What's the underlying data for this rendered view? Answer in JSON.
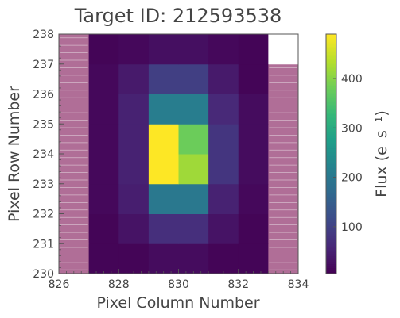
{
  "chart_data": {
    "type": "heatmap",
    "title": "Target ID: 212593538",
    "xlabel": "Pixel Column Number",
    "ylabel": "Pixel Row Number",
    "colorbar_label": "Flux (e⁻s⁻¹)",
    "colormap": "viridis",
    "xlim": [
      826,
      834
    ],
    "ylim": [
      230,
      238
    ],
    "x_ticks": [
      826,
      828,
      830,
      832,
      834
    ],
    "y_ticks": [
      230,
      231,
      232,
      233,
      234,
      235,
      236,
      237,
      238
    ],
    "colorbar_range": [
      5,
      490
    ],
    "colorbar_ticks": [
      100,
      200,
      300,
      400
    ],
    "grid": false,
    "colorbar_placement": "right",
    "columns": [
      826,
      827,
      828,
      829,
      830,
      831,
      832,
      833
    ],
    "rows": [
      230,
      231,
      232,
      233,
      234,
      235,
      236,
      237
    ],
    "flux": [
      [
        null,
        10,
        10,
        20,
        20,
        10,
        10,
        null
      ],
      [
        null,
        10,
        30,
        70,
        70,
        30,
        10,
        null
      ],
      [
        null,
        15,
        45,
        200,
        200,
        50,
        15,
        null
      ],
      [
        null,
        15,
        50,
        490,
        420,
        80,
        20,
        null
      ],
      [
        null,
        15,
        50,
        490,
        380,
        80,
        20,
        null
      ],
      [
        null,
        15,
        50,
        210,
        210,
        60,
        20,
        null
      ],
      [
        null,
        15,
        40,
        95,
        95,
        40,
        10,
        null
      ],
      [
        null,
        10,
        15,
        25,
        25,
        15,
        10,
        null
      ]
    ],
    "masked_pixels": [
      {
        "column": 826,
        "rows": [
          230,
          231,
          232,
          233,
          234,
          235,
          236,
          237
        ]
      },
      {
        "column": 833,
        "rows": [
          230,
          231,
          232,
          233,
          234,
          235,
          236
        ]
      }
    ],
    "blank_pixels": [
      {
        "column": 833,
        "row": 237
      }
    ],
    "mask_color": "#b06e97",
    "mask_line_color": "#f5f5f5"
  }
}
